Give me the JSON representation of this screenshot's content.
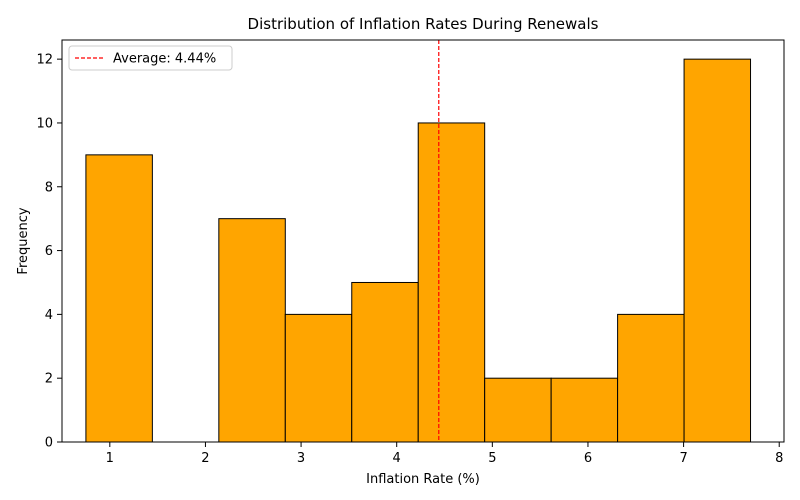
{
  "chart_data": {
    "type": "bar",
    "title": "Distribution of Inflation Rates During Renewals",
    "xlabel": "Inflation Rate (%)",
    "ylabel": "Frequency",
    "bin_edges": [
      0.75,
      1.445,
      2.14,
      2.835,
      3.53,
      4.225,
      4.92,
      5.615,
      6.31,
      7.005,
      7.7
    ],
    "values": [
      9,
      0,
      7,
      4,
      5,
      10,
      2,
      2,
      4,
      12
    ],
    "xlim": [
      0.5,
      8.05
    ],
    "ylim": [
      0,
      12.6
    ],
    "x_ticks": [
      1,
      2,
      3,
      4,
      5,
      6,
      7,
      8
    ],
    "y_ticks": [
      0,
      2,
      4,
      6,
      8,
      10,
      12
    ],
    "average": 4.44,
    "average_label": "Average: 4.44%",
    "legend_position": "top-left",
    "grid": false,
    "bar_color": "#ffa500",
    "bar_edge_color": "#000000",
    "average_line_color": "#ff0000"
  }
}
